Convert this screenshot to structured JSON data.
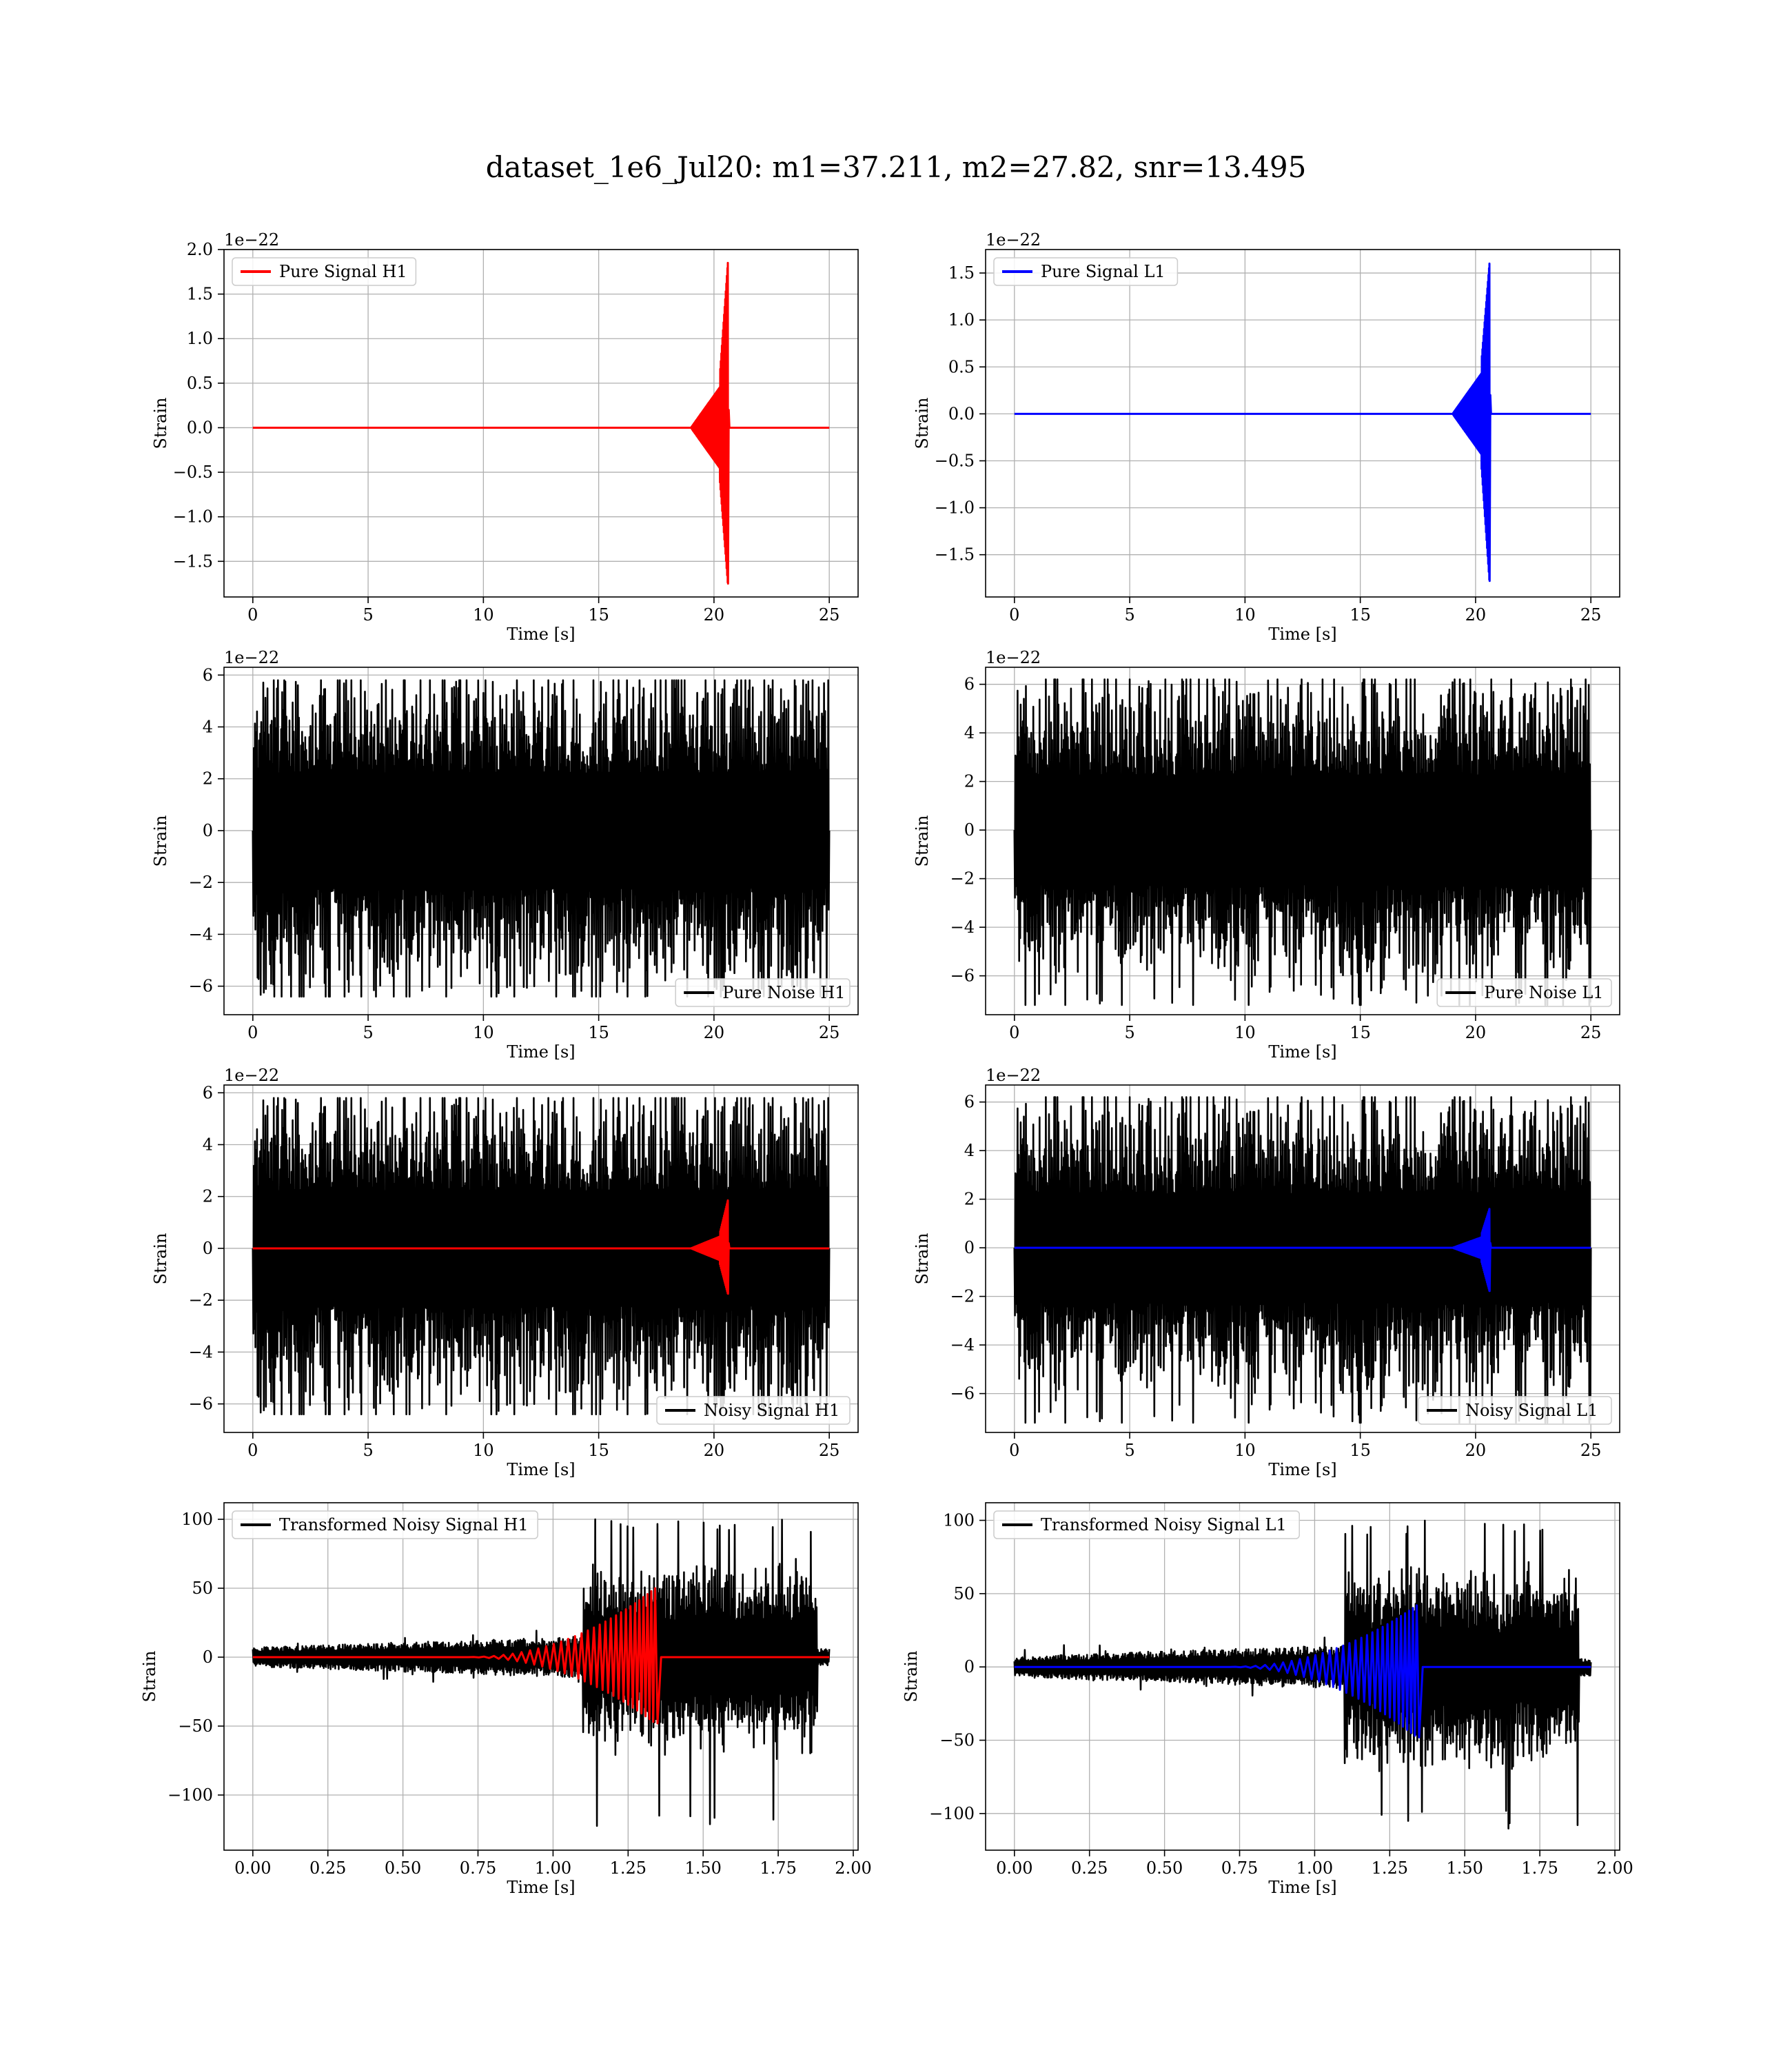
{
  "figure": {
    "title": "dataset_1e6_Jul20: m1=37.211, m2=27.82, snr=13.495"
  },
  "colors": {
    "h1_signal": "#ff0000",
    "l1_signal": "#0000ff",
    "noise": "#000000",
    "grid": "#b0b0b0"
  },
  "chart_data": [
    {
      "id": "pure-signal-h1",
      "type": "line",
      "xlabel": "Time [s]",
      "ylabel": "Strain",
      "offset_text": "1e−22",
      "xlim": [
        -1.25,
        26.25
      ],
      "ylim": [
        -1.9,
        2.0
      ],
      "xticks": [
        0,
        5,
        10,
        15,
        20,
        25
      ],
      "xtick_labels": [
        "0",
        "5",
        "10",
        "15",
        "20",
        "25"
      ],
      "yticks": [
        2.0,
        1.5,
        1.0,
        0.5,
        0.0,
        -0.5,
        -1.0,
        -1.5
      ],
      "ytick_labels": [
        "2.0",
        "1.5",
        "1.0",
        "0.5",
        "0.0",
        "−0.5",
        "−1.0",
        "−1.5"
      ],
      "grid": true,
      "legend": {
        "position": "upper left",
        "entries": [
          {
            "label": "Pure Signal H1",
            "color": "#ff0000"
          }
        ]
      },
      "series": [
        {
          "name": "Pure Signal H1",
          "color": "#ff0000",
          "kind": "chirp",
          "t_start": 0,
          "t_end": 25,
          "t_merger": 20.6,
          "peak_pos": 1.85,
          "peak_neg": -1.75,
          "plateau": 0.58
        }
      ]
    },
    {
      "id": "pure-signal-l1",
      "type": "line",
      "xlabel": "Time [s]",
      "ylabel": "Strain",
      "offset_text": "1e−22",
      "xlim": [
        -1.25,
        26.25
      ],
      "ylim": [
        -1.95,
        1.75
      ],
      "xticks": [
        0,
        5,
        10,
        15,
        20,
        25
      ],
      "xtick_labels": [
        "0",
        "5",
        "10",
        "15",
        "20",
        "25"
      ],
      "yticks": [
        1.5,
        1.0,
        0.5,
        0.0,
        -0.5,
        -1.0,
        -1.5
      ],
      "ytick_labels": [
        "1.5",
        "1.0",
        "0.5",
        "0.0",
        "−0.5",
        "−1.0",
        "−1.5"
      ],
      "grid": true,
      "legend": {
        "position": "upper left",
        "entries": [
          {
            "label": "Pure Signal L1",
            "color": "#0000ff"
          }
        ]
      },
      "series": [
        {
          "name": "Pure Signal L1",
          "color": "#0000ff",
          "kind": "chirp",
          "t_start": 0,
          "t_end": 25,
          "t_merger": 20.6,
          "peak_pos": 1.6,
          "peak_neg": -1.78,
          "plateau": 0.55
        }
      ]
    },
    {
      "id": "pure-noise-h1",
      "type": "line",
      "xlabel": "Time [s]",
      "ylabel": "Strain",
      "offset_text": "1e−22",
      "xlim": [
        -1.25,
        26.25
      ],
      "ylim": [
        -7.1,
        6.3
      ],
      "xticks": [
        0,
        5,
        10,
        15,
        20,
        25
      ],
      "xtick_labels": [
        "0",
        "5",
        "10",
        "15",
        "20",
        "25"
      ],
      "yticks": [
        6,
        4,
        2,
        0,
        -2,
        -4,
        -6
      ],
      "ytick_labels": [
        "6",
        "4",
        "2",
        "0",
        "−2",
        "−4",
        "−6"
      ],
      "grid": true,
      "legend": {
        "position": "lower right",
        "entries": [
          {
            "label": "Pure Noise H1",
            "color": "#000000"
          }
        ]
      },
      "series": [
        {
          "name": "Pure Noise H1",
          "color": "#000000",
          "kind": "noise",
          "t_start": 0,
          "t_end": 25,
          "band": 4.0,
          "max": 5.8,
          "min": -6.4,
          "seed": 11
        }
      ]
    },
    {
      "id": "pure-noise-l1",
      "type": "line",
      "xlabel": "Time [s]",
      "ylabel": "Strain",
      "offset_text": "1e−22",
      "xlim": [
        -1.25,
        26.25
      ],
      "ylim": [
        -7.6,
        6.7
      ],
      "xticks": [
        0,
        5,
        10,
        15,
        20,
        25
      ],
      "xtick_labels": [
        "0",
        "5",
        "10",
        "15",
        "20",
        "25"
      ],
      "yticks": [
        6,
        4,
        2,
        0,
        -2,
        -4,
        -6
      ],
      "ytick_labels": [
        "6",
        "4",
        "2",
        "0",
        "−2",
        "−4",
        "−6"
      ],
      "grid": true,
      "legend": {
        "position": "lower right",
        "entries": [
          {
            "label": "Pure Noise L1",
            "color": "#000000"
          }
        ]
      },
      "series": [
        {
          "name": "Pure Noise L1",
          "color": "#000000",
          "kind": "noise",
          "t_start": 0,
          "t_end": 25,
          "band": 4.0,
          "max": 6.2,
          "min": -7.2,
          "seed": 23
        }
      ]
    },
    {
      "id": "noisy-signal-h1",
      "type": "line",
      "xlabel": "Time [s]",
      "ylabel": "Strain",
      "offset_text": "1e−22",
      "xlim": [
        -1.25,
        26.25
      ],
      "ylim": [
        -7.1,
        6.3
      ],
      "xticks": [
        0,
        5,
        10,
        15,
        20,
        25
      ],
      "xtick_labels": [
        "0",
        "5",
        "10",
        "15",
        "20",
        "25"
      ],
      "yticks": [
        6,
        4,
        2,
        0,
        -2,
        -4,
        -6
      ],
      "ytick_labels": [
        "6",
        "4",
        "2",
        "0",
        "−2",
        "−4",
        "−6"
      ],
      "grid": true,
      "legend": {
        "position": "lower right",
        "entries": [
          {
            "label": "Noisy Signal H1",
            "color": "#000000"
          }
        ]
      },
      "series": [
        {
          "name": "Noisy Signal H1",
          "color": "#000000",
          "kind": "noise",
          "t_start": 0,
          "t_end": 25,
          "band": 4.0,
          "max": 5.8,
          "min": -6.4,
          "seed": 11
        },
        {
          "color": "#ff0000",
          "kind": "chirp",
          "t_start": 0,
          "t_end": 25,
          "t_merger": 20.6,
          "peak_pos": 1.85,
          "peak_neg": -1.75,
          "plateau": 0.58
        }
      ]
    },
    {
      "id": "noisy-signal-l1",
      "type": "line",
      "xlabel": "Time [s]",
      "ylabel": "Strain",
      "offset_text": "1e−22",
      "xlim": [
        -1.25,
        26.25
      ],
      "ylim": [
        -7.6,
        6.7
      ],
      "xticks": [
        0,
        5,
        10,
        15,
        20,
        25
      ],
      "xtick_labels": [
        "0",
        "5",
        "10",
        "15",
        "20",
        "25"
      ],
      "yticks": [
        6,
        4,
        2,
        0,
        -2,
        -4,
        -6
      ],
      "ytick_labels": [
        "6",
        "4",
        "2",
        "0",
        "−2",
        "−4",
        "−6"
      ],
      "grid": true,
      "legend": {
        "position": "lower right",
        "entries": [
          {
            "label": "Noisy Signal L1",
            "color": "#000000"
          }
        ]
      },
      "series": [
        {
          "name": "Noisy Signal L1",
          "color": "#000000",
          "kind": "noise",
          "t_start": 0,
          "t_end": 25,
          "band": 4.0,
          "max": 6.2,
          "min": -7.2,
          "seed": 23
        },
        {
          "color": "#0000ff",
          "kind": "chirp",
          "t_start": 0,
          "t_end": 25,
          "t_merger": 20.6,
          "peak_pos": 1.6,
          "peak_neg": -1.78,
          "plateau": 0.55
        }
      ]
    },
    {
      "id": "transformed-noisy-signal-h1",
      "type": "line",
      "xlabel": "Time [s]",
      "ylabel": "Strain",
      "offset_text": "",
      "xlim": [
        -0.096,
        2.016
      ],
      "ylim": [
        -140,
        112
      ],
      "xticks": [
        0.0,
        0.25,
        0.5,
        0.75,
        1.0,
        1.25,
        1.5,
        1.75,
        2.0
      ],
      "xtick_labels": [
        "0.00",
        "0.25",
        "0.50",
        "0.75",
        "1.00",
        "1.25",
        "1.50",
        "1.75",
        "2.00"
      ],
      "yticks": [
        100,
        50,
        0,
        -50,
        -100
      ],
      "ytick_labels": [
        "100",
        "50",
        "0",
        "−50",
        "−100"
      ],
      "grid": true,
      "legend": {
        "position": "upper left",
        "entries": [
          {
            "label": "Transformed Noisy Signal H1",
            "color": "#000000"
          }
        ]
      },
      "series": [
        {
          "name": "Transformed Noisy Signal H1",
          "color": "#000000",
          "kind": "tnoise",
          "t_start": 0,
          "t_end": 1.92,
          "max": 100,
          "min": -128,
          "seed": 37,
          "burst_start": 1.1,
          "burst_end": 1.88
        },
        {
          "color": "#ff0000",
          "kind": "tchirp",
          "t_start": 0,
          "t_end": 1.92,
          "t_merger": 1.34,
          "peak_pos": 50,
          "peak_neg": -48
        }
      ]
    },
    {
      "id": "transformed-noisy-signal-l1",
      "type": "line",
      "xlabel": "Time [s]",
      "ylabel": "Strain",
      "offset_text": "",
      "xlim": [
        -0.096,
        2.016
      ],
      "ylim": [
        -125,
        112
      ],
      "xticks": [
        0.0,
        0.25,
        0.5,
        0.75,
        1.0,
        1.25,
        1.5,
        1.75,
        2.0
      ],
      "xtick_labels": [
        "0.00",
        "0.25",
        "0.50",
        "0.75",
        "1.00",
        "1.25",
        "1.50",
        "1.75",
        "2.00"
      ],
      "yticks": [
        100,
        50,
        0,
        -50,
        -100
      ],
      "ytick_labels": [
        "100",
        "50",
        "0",
        "−50",
        "−100"
      ],
      "grid": true,
      "legend": {
        "position": "upper left",
        "entries": [
          {
            "label": "Transformed Noisy Signal L1",
            "color": "#000000"
          }
        ]
      },
      "series": [
        {
          "name": "Transformed Noisy Signal L1",
          "color": "#000000",
          "kind": "tnoise",
          "t_start": 0,
          "t_end": 1.92,
          "max": 100,
          "min": -115,
          "seed": 53,
          "burst_start": 1.1,
          "burst_end": 1.88
        },
        {
          "color": "#0000ff",
          "kind": "tchirp",
          "t_start": 0,
          "t_end": 1.92,
          "t_merger": 1.34,
          "peak_pos": 42,
          "peak_neg": -48
        }
      ]
    }
  ]
}
